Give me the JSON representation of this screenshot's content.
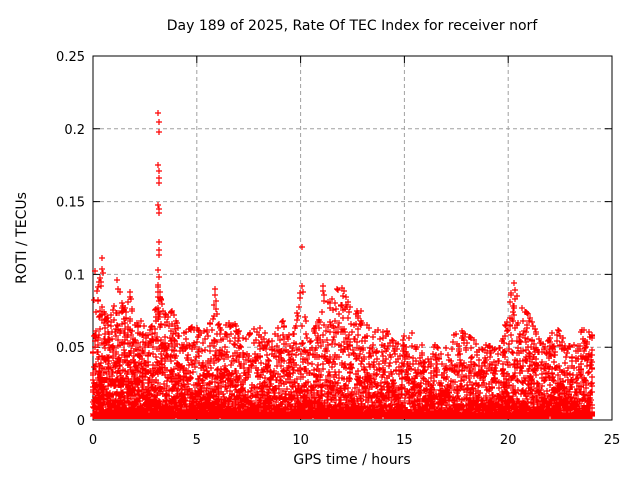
{
  "chart_data": {
    "type": "scatter",
    "title": "Day 189 of 2025, Rate Of TEC Index for receiver norf",
    "xlabel": "GPS time / hours",
    "ylabel": "ROTI / TECUs",
    "xlim": [
      0,
      25
    ],
    "ylim": [
      0,
      0.25
    ],
    "xticks": [
      "0",
      "5",
      "10",
      "15",
      "20",
      "25"
    ],
    "xtick_values": [
      0,
      5,
      10,
      15,
      20,
      25
    ],
    "yticks": [
      "0",
      "0.05",
      "0.1",
      "0.15",
      "0.2",
      "0.25"
    ],
    "ytick_values": [
      0,
      0.05,
      0.1,
      0.15,
      0.2,
      0.25
    ],
    "grid": true,
    "legend": "none",
    "marker": {
      "shape": "plus",
      "size": 7,
      "stroke_width": 1.2
    },
    "colors": {
      "points": "#ff0000",
      "grid": "#a0a0a0",
      "border": "#000000",
      "background": "#ffffff"
    },
    "x_data_range": [
      0,
      24.05
    ],
    "value_floor": 0.0025,
    "seed": 42,
    "spread_exponent": 3.5,
    "density_per_0p1h": [
      [
        0,
        44
      ],
      [
        3,
        42
      ],
      [
        4,
        34
      ],
      [
        8,
        31
      ],
      [
        13,
        29
      ],
      [
        14,
        27
      ],
      [
        19,
        26
      ],
      [
        19.8,
        30
      ],
      [
        24,
        30
      ]
    ],
    "envelope": [
      [
        0.0,
        0.078
      ],
      [
        0.2,
        0.09
      ],
      [
        0.35,
        0.1
      ],
      [
        0.5,
        0.075
      ],
      [
        0.7,
        0.07
      ],
      [
        0.9,
        0.072
      ],
      [
        1.1,
        0.09
      ],
      [
        1.3,
        0.088
      ],
      [
        1.5,
        0.075
      ],
      [
        1.8,
        0.085
      ],
      [
        2.0,
        0.065
      ],
      [
        2.3,
        0.068
      ],
      [
        2.6,
        0.06
      ],
      [
        2.9,
        0.065
      ],
      [
        3.05,
        0.08
      ],
      [
        3.2,
        0.1
      ],
      [
        3.35,
        0.075
      ],
      [
        3.6,
        0.07
      ],
      [
        3.8,
        0.075
      ],
      [
        4.0,
        0.068
      ],
      [
        4.3,
        0.06
      ],
      [
        4.6,
        0.062
      ],
      [
        4.9,
        0.065
      ],
      [
        5.2,
        0.06
      ],
      [
        5.5,
        0.062
      ],
      [
        5.75,
        0.07
      ],
      [
        5.9,
        0.088
      ],
      [
        6.1,
        0.07
      ],
      [
        6.4,
        0.065
      ],
      [
        6.7,
        0.07
      ],
      [
        7.0,
        0.062
      ],
      [
        7.3,
        0.055
      ],
      [
        7.6,
        0.06
      ],
      [
        7.9,
        0.065
      ],
      [
        8.2,
        0.062
      ],
      [
        8.5,
        0.055
      ],
      [
        8.8,
        0.06
      ],
      [
        9.1,
        0.068
      ],
      [
        9.4,
        0.058
      ],
      [
        9.7,
        0.06
      ],
      [
        10.0,
        0.088
      ],
      [
        10.3,
        0.065
      ],
      [
        10.6,
        0.06
      ],
      [
        10.9,
        0.07
      ],
      [
        11.1,
        0.09
      ],
      [
        11.4,
        0.08
      ],
      [
        11.7,
        0.09
      ],
      [
        12.0,
        0.092
      ],
      [
        12.3,
        0.08
      ],
      [
        12.6,
        0.072
      ],
      [
        12.9,
        0.075
      ],
      [
        13.2,
        0.065
      ],
      [
        13.5,
        0.06
      ],
      [
        13.8,
        0.062
      ],
      [
        14.1,
        0.062
      ],
      [
        14.4,
        0.055
      ],
      [
        14.7,
        0.052
      ],
      [
        15.0,
        0.058
      ],
      [
        15.3,
        0.062
      ],
      [
        15.6,
        0.05
      ],
      [
        15.9,
        0.052
      ],
      [
        16.2,
        0.05
      ],
      [
        16.5,
        0.052
      ],
      [
        16.8,
        0.048
      ],
      [
        17.1,
        0.05
      ],
      [
        17.4,
        0.058
      ],
      [
        17.7,
        0.062
      ],
      [
        18.0,
        0.058
      ],
      [
        18.4,
        0.055
      ],
      [
        18.7,
        0.05
      ],
      [
        19.0,
        0.052
      ],
      [
        19.3,
        0.048
      ],
      [
        19.6,
        0.05
      ],
      [
        19.9,
        0.065
      ],
      [
        20.2,
        0.09
      ],
      [
        20.45,
        0.085
      ],
      [
        20.7,
        0.075
      ],
      [
        21.0,
        0.073
      ],
      [
        21.2,
        0.065
      ],
      [
        21.5,
        0.055
      ],
      [
        21.8,
        0.05
      ],
      [
        22.1,
        0.06
      ],
      [
        22.4,
        0.062
      ],
      [
        22.7,
        0.055
      ],
      [
        23.0,
        0.05
      ],
      [
        23.3,
        0.06
      ],
      [
        23.6,
        0.062
      ],
      [
        23.9,
        0.06
      ],
      [
        24.05,
        0.058
      ]
    ],
    "outliers": [
      [
        3.15,
        0.211
      ],
      [
        3.17,
        0.205
      ],
      [
        3.18,
        0.198
      ],
      [
        3.14,
        0.175
      ],
      [
        3.18,
        0.171
      ],
      [
        3.19,
        0.166
      ],
      [
        3.16,
        0.163
      ],
      [
        3.15,
        0.148
      ],
      [
        3.18,
        0.145
      ],
      [
        3.19,
        0.142
      ],
      [
        3.17,
        0.122
      ],
      [
        3.19,
        0.117
      ],
      [
        3.2,
        0.113
      ],
      [
        3.15,
        0.103
      ],
      [
        3.18,
        0.098
      ],
      [
        3.12,
        0.093
      ],
      [
        3.22,
        0.088
      ],
      [
        0.42,
        0.111
      ],
      [
        0.45,
        0.104
      ],
      [
        0.48,
        0.101
      ],
      [
        0.1,
        0.102
      ],
      [
        0.3,
        0.095
      ],
      [
        1.15,
        0.096
      ],
      [
        1.2,
        0.09
      ],
      [
        1.8,
        0.088
      ],
      [
        1.85,
        0.083
      ],
      [
        5.88,
        0.09
      ],
      [
        5.9,
        0.086
      ],
      [
        5.93,
        0.082
      ],
      [
        8.28,
        0.06
      ],
      [
        9.15,
        0.068
      ],
      [
        10.07,
        0.119
      ],
      [
        10.05,
        0.092
      ],
      [
        10.1,
        0.088
      ],
      [
        11.1,
        0.092
      ],
      [
        11.15,
        0.086
      ],
      [
        11.5,
        0.083
      ],
      [
        12.0,
        0.091
      ],
      [
        12.05,
        0.085
      ],
      [
        11.95,
        0.079
      ],
      [
        12.7,
        0.075
      ],
      [
        12.75,
        0.07
      ],
      [
        19.85,
        0.065
      ],
      [
        20.15,
        0.087
      ],
      [
        20.3,
        0.094
      ],
      [
        20.32,
        0.089
      ],
      [
        20.35,
        0.083
      ],
      [
        20.3,
        0.078
      ],
      [
        20.95,
        0.073
      ],
      [
        21.0,
        0.068
      ],
      [
        22.4,
        0.062
      ]
    ]
  }
}
